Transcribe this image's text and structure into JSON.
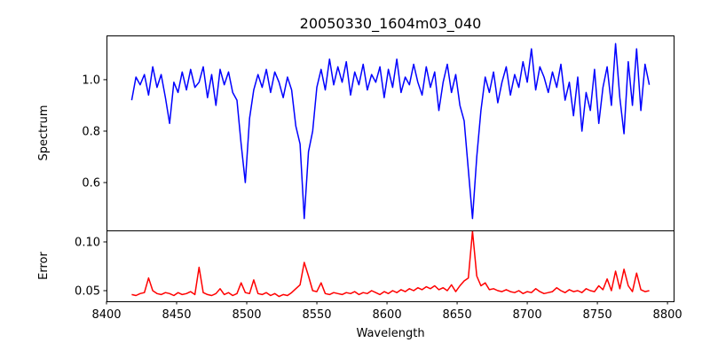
{
  "chart_data": [
    {
      "type": "line",
      "title": "20050330_1604m03_040",
      "xlabel": "",
      "ylabel": "Spectrum",
      "xlim": [
        8400,
        8805
      ],
      "ylim": [
        0.414,
        1.172
      ],
      "yticks": [
        "0.6",
        "0.8",
        "1.0"
      ],
      "ytick_values": [
        0.6,
        0.8,
        1.0
      ],
      "color": "#0000ff",
      "x_start": 8418,
      "x_step": 3,
      "values": [
        0.92,
        1.01,
        0.98,
        1.02,
        0.94,
        1.05,
        0.97,
        1.02,
        0.93,
        0.83,
        0.99,
        0.95,
        1.03,
        0.96,
        1.04,
        0.97,
        0.99,
        1.05,
        0.93,
        1.02,
        0.9,
        1.04,
        0.98,
        1.03,
        0.95,
        0.92,
        0.75,
        0.6,
        0.85,
        0.96,
        1.02,
        0.97,
        1.04,
        0.95,
        1.03,
        0.99,
        0.93,
        1.01,
        0.96,
        0.82,
        0.75,
        0.46,
        0.72,
        0.8,
        0.97,
        1.04,
        0.96,
        1.08,
        0.98,
        1.05,
        0.99,
        1.07,
        0.94,
        1.03,
        0.98,
        1.06,
        0.96,
        1.02,
        0.99,
        1.05,
        0.93,
        1.04,
        0.97,
        1.08,
        0.95,
        1.01,
        0.98,
        1.06,
        0.99,
        0.94,
        1.05,
        0.97,
        1.03,
        0.88,
        0.99,
        1.06,
        0.95,
        1.02,
        0.9,
        0.84,
        0.65,
        0.46,
        0.7,
        0.88,
        1.01,
        0.95,
        1.03,
        0.91,
        0.99,
        1.05,
        0.94,
        1.02,
        0.97,
        1.07,
        0.99,
        1.12,
        0.96,
        1.05,
        1.01,
        0.95,
        1.03,
        0.97,
        1.06,
        0.92,
        0.99,
        0.86,
        1.01,
        0.8,
        0.95,
        0.88,
        1.04,
        0.83,
        0.97,
        1.05,
        0.9,
        1.14,
        0.93,
        0.79,
        1.07,
        0.9,
        1.12,
        0.88,
        1.06,
        0.98
      ]
    },
    {
      "type": "line",
      "xlabel": "Wavelength",
      "ylabel": "Error",
      "xlim": [
        8400,
        8805
      ],
      "ylim": [
        0.0391,
        0.1118
      ],
      "xticks": [
        "8400",
        "8450",
        "8500",
        "8550",
        "8600",
        "8650",
        "8700",
        "8750",
        "8800"
      ],
      "xtick_values": [
        8400,
        8450,
        8500,
        8550,
        8600,
        8650,
        8700,
        8750,
        8800
      ],
      "yticks": [
        "0.05",
        "0.10"
      ],
      "ytick_values": [
        0.05,
        0.1
      ],
      "color": "#ff0000",
      "x_start": 8418,
      "x_step": 3,
      "values": [
        0.046,
        0.045,
        0.047,
        0.048,
        0.063,
        0.05,
        0.047,
        0.046,
        0.048,
        0.047,
        0.045,
        0.048,
        0.046,
        0.047,
        0.049,
        0.046,
        0.074,
        0.048,
        0.046,
        0.045,
        0.047,
        0.052,
        0.046,
        0.048,
        0.045,
        0.047,
        0.058,
        0.048,
        0.047,
        0.061,
        0.047,
        0.046,
        0.048,
        0.045,
        0.047,
        0.044,
        0.046,
        0.045,
        0.048,
        0.052,
        0.056,
        0.079,
        0.065,
        0.05,
        0.049,
        0.058,
        0.047,
        0.046,
        0.048,
        0.047,
        0.046,
        0.048,
        0.047,
        0.049,
        0.046,
        0.048,
        0.047,
        0.05,
        0.048,
        0.046,
        0.049,
        0.047,
        0.05,
        0.048,
        0.051,
        0.049,
        0.052,
        0.05,
        0.053,
        0.051,
        0.054,
        0.052,
        0.055,
        0.051,
        0.053,
        0.05,
        0.056,
        0.049,
        0.055,
        0.06,
        0.063,
        0.111,
        0.065,
        0.055,
        0.058,
        0.051,
        0.052,
        0.05,
        0.049,
        0.051,
        0.049,
        0.048,
        0.05,
        0.047,
        0.049,
        0.048,
        0.052,
        0.049,
        0.047,
        0.048,
        0.049,
        0.053,
        0.05,
        0.048,
        0.051,
        0.049,
        0.05,
        0.048,
        0.052,
        0.05,
        0.049,
        0.055,
        0.051,
        0.062,
        0.05,
        0.07,
        0.052,
        0.072,
        0.055,
        0.049,
        0.068,
        0.051,
        0.049,
        0.05
      ]
    }
  ]
}
